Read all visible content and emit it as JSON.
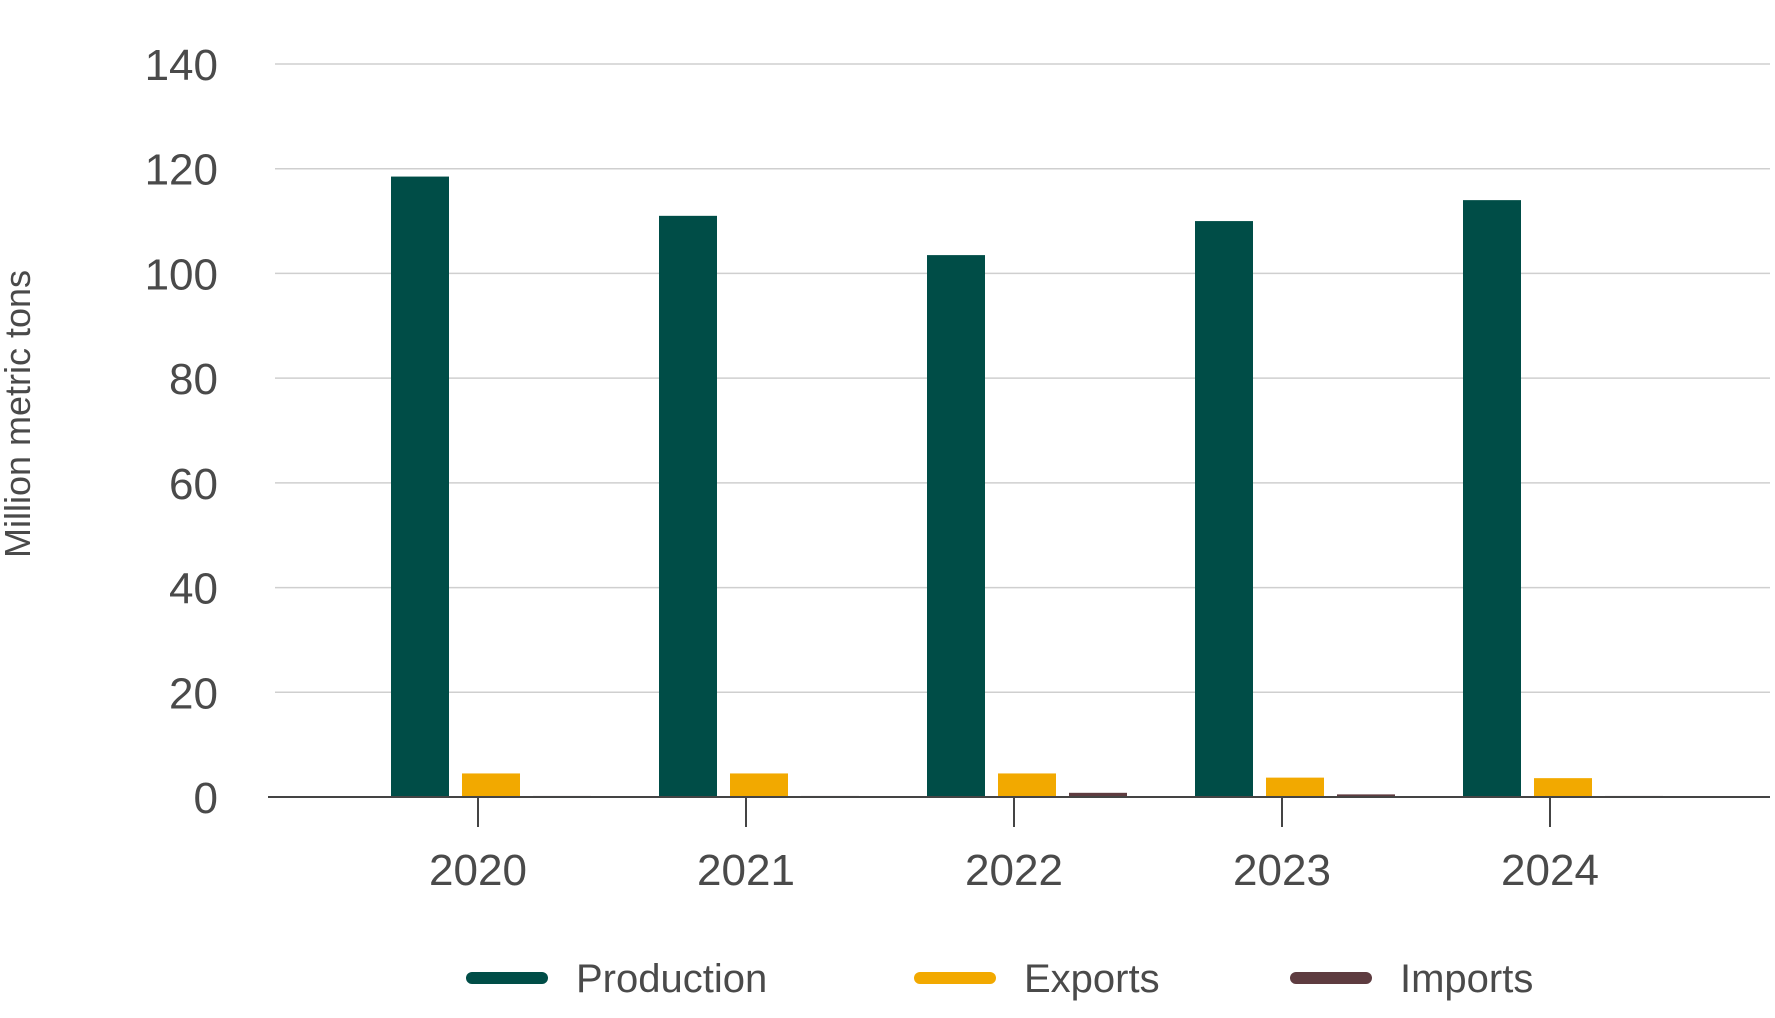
{
  "chart_data": {
    "type": "bar",
    "title": "",
    "xlabel": "",
    "ylabel": "Million metric tons",
    "categories": [
      "2020",
      "2021",
      "2022",
      "2023",
      "2024"
    ],
    "ylim": [
      0,
      140
    ],
    "yticks": [
      0,
      20,
      40,
      60,
      80,
      100,
      120,
      140
    ],
    "grid": true,
    "legend_position": "bottom",
    "series": [
      {
        "name": "Production",
        "color": "#004d47",
        "values": [
          118.5,
          111,
          103.5,
          110,
          114
        ]
      },
      {
        "name": "Exports",
        "color": "#f2a900",
        "values": [
          4.5,
          4.5,
          4.5,
          3.7,
          3.6
        ]
      },
      {
        "name": "Imports",
        "color": "#5e3c40",
        "values": [
          0.2,
          0.2,
          0.8,
          0.5,
          0.2
        ]
      }
    ]
  }
}
